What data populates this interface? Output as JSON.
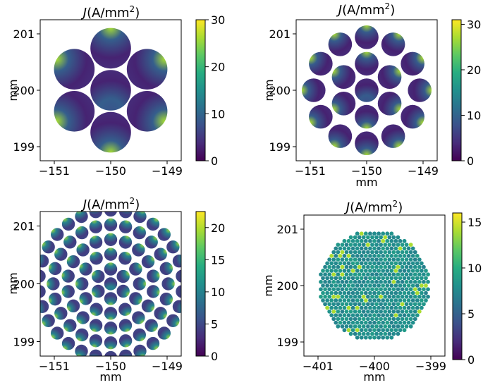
{
  "chart_data": [
    {
      "type": "heatmap",
      "title_main": "J",
      "title_unit": "(A/mm",
      "title_sup": "2",
      "title_close": ")",
      "xlabel": "",
      "ylabel": "mm",
      "xlim": [
        -151.25,
        -148.75
      ],
      "ylim": [
        198.75,
        201.25
      ],
      "xticks": [
        -151,
        -150,
        -149
      ],
      "xtick_labels": [
        "−151",
        "−150",
        "−149"
      ],
      "yticks": [
        199,
        200,
        201
      ],
      "ytick_labels": [
        "199",
        "200",
        "201"
      ],
      "colorbar": {
        "min": 0,
        "max": 30,
        "ticks": [
          0,
          10,
          20,
          30
        ],
        "tick_labels": [
          "0",
          "10",
          "20",
          "30"
        ]
      },
      "center": [
        -150,
        200
      ],
      "strand_rings": [
        1,
        6
      ],
      "strand_radius": 0.36,
      "strand_spacing": 0.745,
      "edge_current_density": 26,
      "core_current_density": 3
    },
    {
      "type": "heatmap",
      "title_main": "J",
      "title_unit": "(A/mm",
      "title_sup": "2",
      "title_close": ")",
      "xlabel": "mm",
      "ylabel": "mm",
      "xlim": [
        -151.25,
        -148.75
      ],
      "ylim": [
        198.75,
        201.25
      ],
      "xticks": [
        -151,
        -150,
        -149
      ],
      "xtick_labels": [
        "−151",
        "−150",
        "−149"
      ],
      "yticks": [
        199,
        200,
        201
      ],
      "ytick_labels": [
        "199",
        "200",
        "201"
      ],
      "colorbar": {
        "min": 0,
        "max": 31,
        "ticks": [
          0,
          10,
          20,
          30
        ],
        "tick_labels": [
          "0",
          "10",
          "20",
          "30"
        ]
      },
      "center": [
        -150,
        200
      ],
      "strand_rings": [
        1,
        6,
        12
      ],
      "strand_radius": 0.21,
      "strand_spacing": 0.47,
      "edge_current_density": 27,
      "core_current_density": 3
    },
    {
      "type": "heatmap",
      "title_main": "J",
      "title_unit": "(A/mm",
      "title_sup": "2",
      "title_close": ")",
      "xlabel": "mm",
      "ylabel": "mm",
      "xlim": [
        -151.25,
        -148.75
      ],
      "ylim": [
        198.75,
        201.25
      ],
      "xticks": [
        -151,
        -150,
        -149
      ],
      "xtick_labels": [
        "−151",
        "−150",
        "−149"
      ],
      "yticks": [
        199,
        200,
        201
      ],
      "ytick_labels": [
        "199",
        "200",
        "201"
      ],
      "colorbar": {
        "min": 0,
        "max": 22.5,
        "ticks": [
          0,
          5,
          10,
          15,
          20
        ],
        "tick_labels": [
          "0",
          "5",
          "10",
          "15",
          "20"
        ]
      },
      "center": [
        -150,
        200
      ],
      "strand_rings": [
        1,
        6,
        12,
        18,
        24,
        30
      ],
      "strand_radius": 0.115,
      "strand_spacing": 0.255,
      "edge_current_density": 19,
      "core_current_density": 4
    },
    {
      "type": "heatmap",
      "title_main": "J",
      "title_unit": "(A/mm",
      "title_sup": "2",
      "title_close": ")",
      "xlabel": "mm",
      "ylabel": "mm",
      "xlim": [
        -401.25,
        -398.75
      ],
      "ylim": [
        198.75,
        201.25
      ],
      "xticks": [
        -401,
        -400,
        -399
      ],
      "xtick_labels": [
        "−401",
        "−400",
        "−399"
      ],
      "yticks": [
        199,
        200,
        201
      ],
      "ytick_labels": [
        "199",
        "200",
        "201"
      ],
      "colorbar": {
        "min": 0,
        "max": 16,
        "ticks": [
          0,
          5,
          10,
          15
        ],
        "tick_labels": [
          "0",
          "5",
          "10",
          "15"
        ]
      },
      "center": [
        -400,
        200
      ],
      "strand_fill_radius": 0.98,
      "strand_radius": 0.036,
      "strand_spacing": 0.076,
      "typical_current_density": 8,
      "hot_current_density": 14
    }
  ]
}
